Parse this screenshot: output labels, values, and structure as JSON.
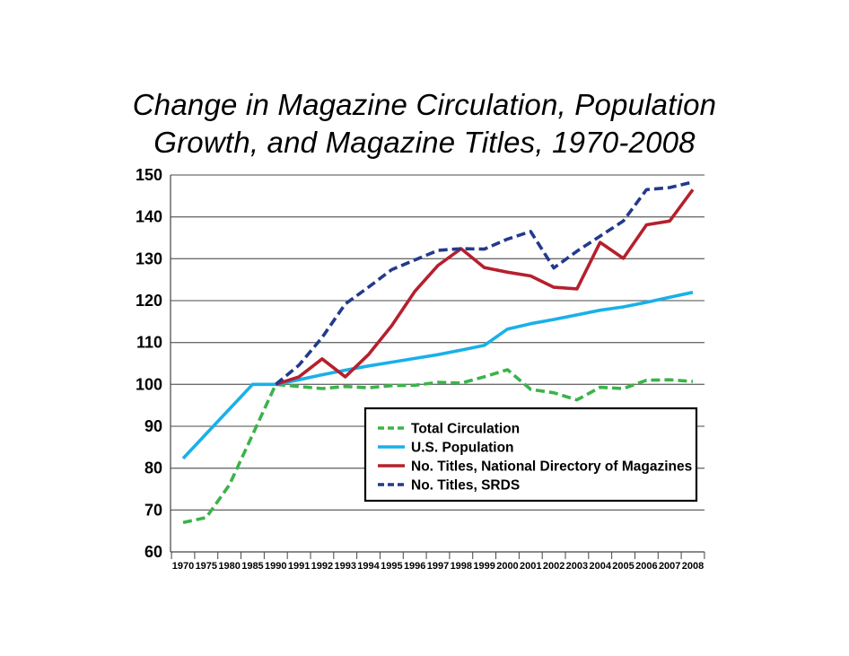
{
  "chart_data": {
    "type": "line",
    "title_lines": [
      "Change in Magazine Circulation, Population",
      "Growth, and Magazine Titles, 1970-2008"
    ],
    "title": "Change in Magazine Circulation, Population Growth, and Magazine Titles, 1970-2008",
    "xlabel": "",
    "ylabel": "",
    "categories": [
      "1970",
      "1975",
      "1980",
      "1985",
      "1990",
      "1991",
      "1992",
      "1993",
      "1994",
      "1995",
      "1996",
      "1997",
      "1998",
      "1999",
      "2000",
      "2001",
      "2002",
      "2003",
      "2004",
      "2005",
      "2006",
      "2007",
      "2008"
    ],
    "ylim": [
      60,
      150
    ],
    "yticks": [
      60,
      70,
      80,
      90,
      100,
      110,
      120,
      130,
      140,
      150
    ],
    "grid": true,
    "legend_position": "lower-right",
    "series": [
      {
        "name": "Total Circulation",
        "color": "#3bb34a",
        "dash": "dashed",
        "values": [
          67,
          68.2,
          76,
          88,
          100,
          99.5,
          99,
          99.5,
          99.2,
          99.7,
          99.8,
          100.5,
          100.3,
          101.8,
          103.5,
          98.8,
          98,
          96.3,
          99.3,
          99,
          101,
          101.1,
          100.7
        ]
      },
      {
        "name": "U.S. Population",
        "color": "#1ab0e8",
        "dash": "solid",
        "values": [
          82.3,
          88.2,
          94.1,
          100,
          100,
          101.1,
          102.3,
          103.4,
          104.4,
          105.3,
          106.2,
          107.1,
          108.2,
          109.3,
          113.2,
          114.5,
          115.5,
          116.6,
          117.7,
          118.5,
          119.6,
          120.8,
          122
        ]
      },
      {
        "name": "No. Titles, National Directory of Magazines",
        "color": "#b5202e",
        "dash": "solid",
        "values": [
          null,
          null,
          null,
          null,
          100,
          101.8,
          106.1,
          101.8,
          107.1,
          114,
          122.2,
          128.4,
          132.4,
          127.9,
          126.8,
          125.9,
          123.2,
          122.8,
          133.9,
          130.1,
          138.1,
          139,
          146.5
        ]
      },
      {
        "name": "No. Titles, SRDS",
        "color": "#233a8c",
        "dash": "dashed",
        "values": [
          null,
          null,
          null,
          null,
          100,
          104.6,
          111.2,
          119.2,
          123.2,
          127.4,
          129.7,
          132,
          132.4,
          132.3,
          134.7,
          136.5,
          127.8,
          131.8,
          135.4,
          139,
          146.5,
          147,
          148.3
        ]
      }
    ]
  }
}
